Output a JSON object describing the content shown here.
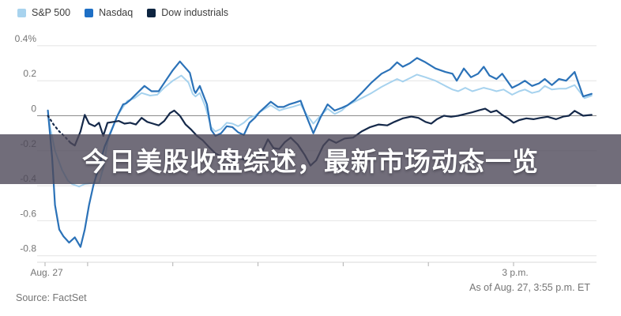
{
  "legend": {
    "items": [
      {
        "label": "S&P 500",
        "color": "#a8d3ee"
      },
      {
        "label": "Nasdaq",
        "color": "#1e6fc5"
      },
      {
        "label": "Dow industrials",
        "color": "#0d2440"
      }
    ]
  },
  "headline": {
    "text": "今日美股收盘综述，最新市场动态一览"
  },
  "footer": {
    "source": "Source: FactSet",
    "as_of": "As of Aug. 27, 3:55 p.m. ET"
  },
  "chart_data": {
    "type": "line",
    "title": "",
    "x_unit": "minutes since 9:30 a.m. ET",
    "x_range": [
      0,
      385
    ],
    "y_unit": "percent change from previous close",
    "ylim": [
      -0.8,
      0.4
    ],
    "grid": true,
    "legend_position": "top-left",
    "y_ticks": {
      "values": [
        0.4,
        0.2,
        0,
        -0.2,
        -0.4,
        -0.6,
        -0.8
      ],
      "labels": [
        "0.4%",
        "0.2",
        "0",
        "-0.2",
        "-0.4",
        "-0.6",
        "-0.8"
      ]
    },
    "x_ticks": [
      {
        "t": 0,
        "label": "Aug. 27"
      },
      {
        "t": 30,
        "label": ""
      },
      {
        "t": 90,
        "label": ""
      },
      {
        "t": 150,
        "label": ""
      },
      {
        "t": 210,
        "label": ""
      },
      {
        "t": 270,
        "label": ""
      },
      {
        "t": 330,
        "label": "3 p.m."
      }
    ],
    "series": [
      {
        "name": "S&P 500",
        "color": "#a6d2ee",
        "width": 2,
        "dash_head": 0,
        "points": [
          [
            2,
            0.0
          ],
          [
            4,
            -0.08
          ],
          [
            7,
            -0.2
          ],
          [
            12,
            -0.31
          ],
          [
            16,
            -0.37
          ],
          [
            19,
            -0.39
          ],
          [
            24,
            -0.405
          ],
          [
            28,
            -0.39
          ],
          [
            33,
            -0.385
          ],
          [
            38,
            -0.385
          ],
          [
            41,
            -0.3
          ],
          [
            43,
            -0.2
          ],
          [
            45,
            -0.11
          ],
          [
            47,
            -0.075
          ],
          [
            51,
            0.0
          ],
          [
            55,
            0.05
          ],
          [
            58,
            0.085
          ],
          [
            63,
            0.1
          ],
          [
            68,
            0.13
          ],
          [
            74,
            0.115
          ],
          [
            79,
            0.12
          ],
          [
            84,
            0.16
          ],
          [
            90,
            0.2
          ],
          [
            96,
            0.23
          ],
          [
            101,
            0.19
          ],
          [
            104,
            0.125
          ],
          [
            106,
            0.11
          ],
          [
            109,
            0.13
          ],
          [
            113,
            0.05
          ],
          [
            117,
            -0.065
          ],
          [
            120,
            -0.09
          ],
          [
            124,
            -0.075
          ],
          [
            128,
            -0.04
          ],
          [
            132,
            -0.045
          ],
          [
            136,
            -0.06
          ],
          [
            140,
            -0.04
          ],
          [
            144,
            -0.01
          ],
          [
            148,
            0.0
          ],
          [
            151,
            0.02
          ],
          [
            155,
            0.04
          ],
          [
            159,
            0.06
          ],
          [
            165,
            0.03
          ],
          [
            169,
            0.04
          ],
          [
            174,
            0.05
          ],
          [
            180,
            0.065
          ],
          [
            184,
            0.01
          ],
          [
            189,
            -0.045
          ],
          [
            194,
            0.0
          ],
          [
            199,
            0.04
          ],
          [
            204,
            0.01
          ],
          [
            209,
            0.03
          ],
          [
            213,
            0.06
          ],
          [
            218,
            0.08
          ],
          [
            223,
            0.1
          ],
          [
            230,
            0.13
          ],
          [
            237,
            0.165
          ],
          [
            243,
            0.19
          ],
          [
            248,
            0.21
          ],
          [
            252,
            0.195
          ],
          [
            257,
            0.215
          ],
          [
            262,
            0.235
          ],
          [
            268,
            0.22
          ],
          [
            275,
            0.2
          ],
          [
            282,
            0.17
          ],
          [
            287,
            0.15
          ],
          [
            291,
            0.14
          ],
          [
            296,
            0.16
          ],
          [
            301,
            0.14
          ],
          [
            305,
            0.15
          ],
          [
            309,
            0.16
          ],
          [
            314,
            0.15
          ],
          [
            318,
            0.14
          ],
          [
            323,
            0.15
          ],
          [
            329,
            0.12
          ],
          [
            334,
            0.14
          ],
          [
            338,
            0.15
          ],
          [
            343,
            0.13
          ],
          [
            348,
            0.14
          ],
          [
            352,
            0.17
          ],
          [
            357,
            0.15
          ],
          [
            362,
            0.155
          ],
          [
            367,
            0.155
          ],
          [
            373,
            0.175
          ],
          [
            380,
            0.1
          ],
          [
            385,
            0.115
          ]
        ]
      },
      {
        "name": "Nasdaq",
        "color": "#2b72b8",
        "width": 2.2,
        "dash_head": 0,
        "points": [
          [
            2,
            0.03
          ],
          [
            5,
            -0.24
          ],
          [
            7,
            -0.51
          ],
          [
            10,
            -0.65
          ],
          [
            13,
            -0.69
          ],
          [
            17,
            -0.725
          ],
          [
            21,
            -0.695
          ],
          [
            25,
            -0.75
          ],
          [
            28,
            -0.65
          ],
          [
            31,
            -0.51
          ],
          [
            34,
            -0.4
          ],
          [
            38,
            -0.29
          ],
          [
            42,
            -0.175
          ],
          [
            46,
            -0.1
          ],
          [
            51,
            0.0
          ],
          [
            55,
            0.065
          ],
          [
            57,
            0.07
          ],
          [
            60,
            0.09
          ],
          [
            65,
            0.13
          ],
          [
            70,
            0.17
          ],
          [
            75,
            0.14
          ],
          [
            80,
            0.14
          ],
          [
            85,
            0.2
          ],
          [
            90,
            0.26
          ],
          [
            95,
            0.31
          ],
          [
            102,
            0.245
          ],
          [
            105,
            0.145
          ],
          [
            106,
            0.13
          ],
          [
            109,
            0.17
          ],
          [
            114,
            0.065
          ],
          [
            117,
            -0.08
          ],
          [
            120,
            -0.115
          ],
          [
            124,
            -0.1
          ],
          [
            128,
            -0.06
          ],
          [
            132,
            -0.065
          ],
          [
            136,
            -0.095
          ],
          [
            140,
            -0.11
          ],
          [
            144,
            -0.04
          ],
          [
            148,
            -0.01
          ],
          [
            151,
            0.02
          ],
          [
            155,
            0.05
          ],
          [
            159,
            0.08
          ],
          [
            164,
            0.05
          ],
          [
            168,
            0.05
          ],
          [
            172,
            0.065
          ],
          [
            176,
            0.075
          ],
          [
            180,
            0.086
          ],
          [
            184,
            0.0
          ],
          [
            189,
            -0.1
          ],
          [
            194,
            -0.01
          ],
          [
            199,
            0.065
          ],
          [
            204,
            0.03
          ],
          [
            209,
            0.045
          ],
          [
            213,
            0.06
          ],
          [
            218,
            0.09
          ],
          [
            223,
            0.13
          ],
          [
            230,
            0.19
          ],
          [
            237,
            0.24
          ],
          [
            243,
            0.265
          ],
          [
            248,
            0.305
          ],
          [
            252,
            0.28
          ],
          [
            257,
            0.3
          ],
          [
            262,
            0.33
          ],
          [
            268,
            0.305
          ],
          [
            275,
            0.27
          ],
          [
            282,
            0.25
          ],
          [
            287,
            0.24
          ],
          [
            290,
            0.2
          ],
          [
            295,
            0.27
          ],
          [
            300,
            0.22
          ],
          [
            305,
            0.24
          ],
          [
            309,
            0.28
          ],
          [
            313,
            0.23
          ],
          [
            318,
            0.21
          ],
          [
            322,
            0.24
          ],
          [
            329,
            0.16
          ],
          [
            334,
            0.18
          ],
          [
            338,
            0.2
          ],
          [
            343,
            0.17
          ],
          [
            348,
            0.185
          ],
          [
            352,
            0.21
          ],
          [
            357,
            0.175
          ],
          [
            362,
            0.21
          ],
          [
            367,
            0.2
          ],
          [
            373,
            0.25
          ],
          [
            379,
            0.11
          ],
          [
            385,
            0.125
          ]
        ]
      },
      {
        "name": "Dow industrials",
        "color": "#15294a",
        "width": 2.2,
        "dash_head": 5,
        "points": [
          [
            2,
            0.0
          ],
          [
            6,
            -0.05
          ],
          [
            10,
            -0.09
          ],
          [
            14,
            -0.12
          ],
          [
            18,
            -0.155
          ],
          [
            21,
            -0.17
          ],
          [
            25,
            -0.09
          ],
          [
            28,
            0.005
          ],
          [
            31,
            -0.045
          ],
          [
            35,
            -0.06
          ],
          [
            38,
            -0.04
          ],
          [
            41,
            -0.115
          ],
          [
            44,
            -0.04
          ],
          [
            48,
            -0.035
          ],
          [
            52,
            -0.03
          ],
          [
            56,
            -0.045
          ],
          [
            60,
            -0.04
          ],
          [
            64,
            -0.05
          ],
          [
            68,
            -0.012
          ],
          [
            72,
            -0.035
          ],
          [
            76,
            -0.045
          ],
          [
            80,
            -0.055
          ],
          [
            84,
            -0.03
          ],
          [
            88,
            0.015
          ],
          [
            91,
            0.03
          ],
          [
            95,
            0.0
          ],
          [
            99,
            -0.05
          ],
          [
            103,
            -0.08
          ],
          [
            107,
            -0.115
          ],
          [
            111,
            -0.14
          ],
          [
            115,
            -0.175
          ],
          [
            120,
            -0.215
          ],
          [
            125,
            -0.235
          ],
          [
            129,
            -0.25
          ],
          [
            133,
            -0.26
          ],
          [
            137,
            -0.24
          ],
          [
            141,
            -0.255
          ],
          [
            146,
            -0.225
          ],
          [
            151,
            -0.24
          ],
          [
            157,
            -0.135
          ],
          [
            161,
            -0.185
          ],
          [
            165,
            -0.19
          ],
          [
            169,
            -0.15
          ],
          [
            173,
            -0.125
          ],
          [
            178,
            -0.165
          ],
          [
            183,
            -0.225
          ],
          [
            187,
            -0.285
          ],
          [
            191,
            -0.255
          ],
          [
            196,
            -0.17
          ],
          [
            200,
            -0.135
          ],
          [
            205,
            -0.155
          ],
          [
            211,
            -0.13
          ],
          [
            217,
            -0.125
          ],
          [
            223,
            -0.09
          ],
          [
            229,
            -0.065
          ],
          [
            235,
            -0.05
          ],
          [
            241,
            -0.055
          ],
          [
            246,
            -0.035
          ],
          [
            252,
            -0.015
          ],
          [
            258,
            -0.005
          ],
          [
            263,
            -0.012
          ],
          [
            268,
            -0.035
          ],
          [
            272,
            -0.045
          ],
          [
            276,
            -0.02
          ],
          [
            281,
            0.0
          ],
          [
            286,
            -0.006
          ],
          [
            291,
            0.0
          ],
          [
            296,
            0.01
          ],
          [
            301,
            0.02
          ],
          [
            306,
            0.032
          ],
          [
            310,
            0.04
          ],
          [
            314,
            0.02
          ],
          [
            318,
            0.03
          ],
          [
            322,
            0.005
          ],
          [
            326,
            -0.015
          ],
          [
            330,
            -0.04
          ],
          [
            334,
            -0.025
          ],
          [
            339,
            -0.015
          ],
          [
            344,
            -0.02
          ],
          [
            349,
            -0.012
          ],
          [
            354,
            -0.006
          ],
          [
            360,
            -0.02
          ],
          [
            365,
            -0.005
          ],
          [
            369,
            0.0
          ],
          [
            373,
            0.028
          ],
          [
            379,
            0.0
          ],
          [
            385,
            0.005
          ]
        ]
      }
    ]
  }
}
